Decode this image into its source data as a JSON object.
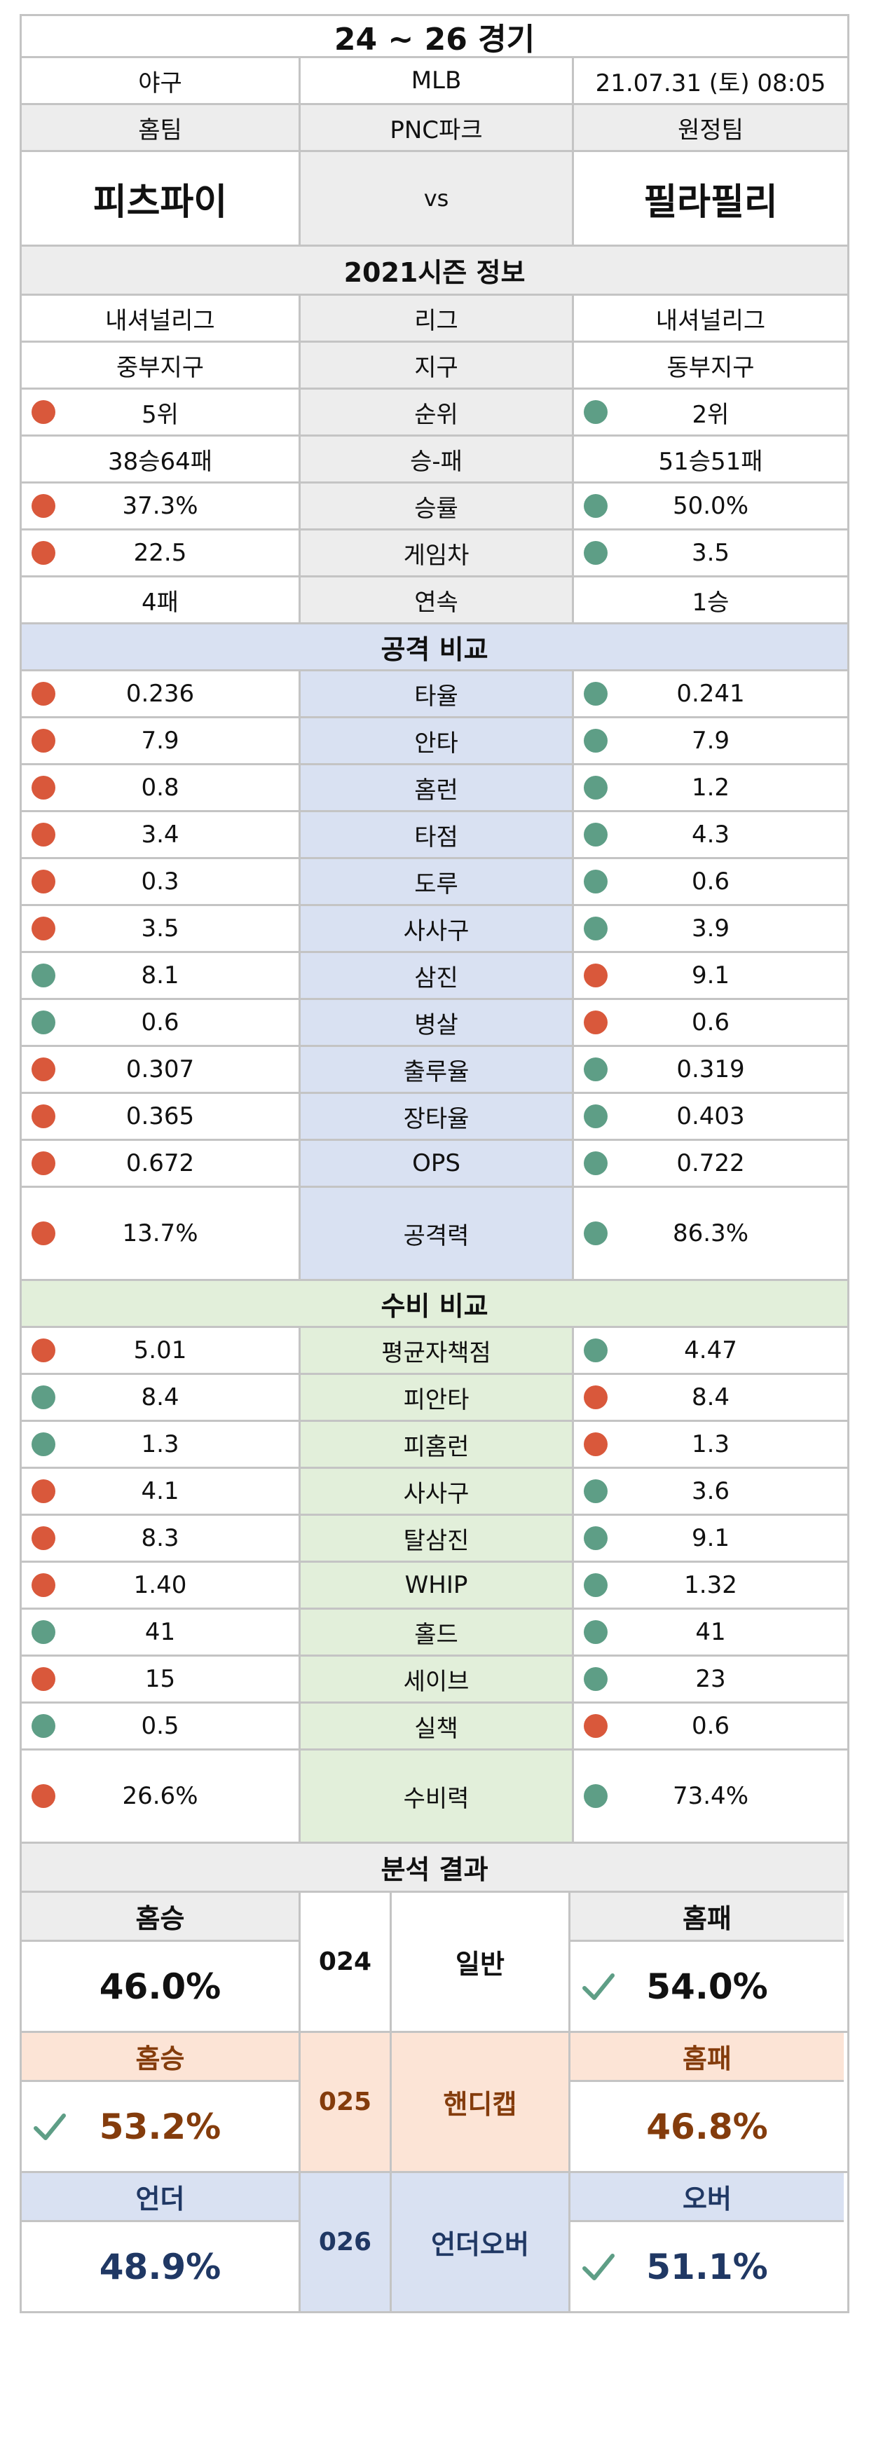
{
  "title": "24 ~ 26 경기",
  "info": {
    "sport": "야구",
    "league": "MLB",
    "datetime": "21.07.31 (토) 08:05"
  },
  "header_labels": {
    "home": "홈팀",
    "venue": "PNC파크",
    "away": "원정팀"
  },
  "teams": {
    "home": "피츠파이",
    "vs": "vs",
    "away": "필라필리"
  },
  "season_title": "2021시즌 정보",
  "season_rows": [
    {
      "home": "내셔널리그",
      "label": "리그",
      "away": "내셔널리그",
      "hdot": "",
      "adot": ""
    },
    {
      "home": "중부지구",
      "label": "지구",
      "away": "동부지구",
      "hdot": "",
      "adot": ""
    },
    {
      "home": "5위",
      "label": "순위",
      "away": "2위",
      "hdot": "red",
      "adot": "green"
    },
    {
      "home": "38승64패",
      "label": "승-패",
      "away": "51승51패",
      "hdot": "",
      "adot": ""
    },
    {
      "home": "37.3%",
      "label": "승률",
      "away": "50.0%",
      "hdot": "red",
      "adot": "green"
    },
    {
      "home": "22.5",
      "label": "게임차",
      "away": "3.5",
      "hdot": "red",
      "adot": "green"
    },
    {
      "home": "4패",
      "label": "연속",
      "away": "1승",
      "hdot": "",
      "adot": ""
    }
  ],
  "offense_title": "공격 비교",
  "offense_rows": [
    {
      "home": "0.236",
      "label": "타율",
      "away": "0.241",
      "hdot": "red",
      "adot": "green"
    },
    {
      "home": "7.9",
      "label": "안타",
      "away": "7.9",
      "hdot": "red",
      "adot": "green"
    },
    {
      "home": "0.8",
      "label": "홈런",
      "away": "1.2",
      "hdot": "red",
      "adot": "green"
    },
    {
      "home": "3.4",
      "label": "타점",
      "away": "4.3",
      "hdot": "red",
      "adot": "green"
    },
    {
      "home": "0.3",
      "label": "도루",
      "away": "0.6",
      "hdot": "red",
      "adot": "green"
    },
    {
      "home": "3.5",
      "label": "사사구",
      "away": "3.9",
      "hdot": "red",
      "adot": "green"
    },
    {
      "home": "8.1",
      "label": "삼진",
      "away": "9.1",
      "hdot": "green",
      "adot": "red"
    },
    {
      "home": "0.6",
      "label": "병살",
      "away": "0.6",
      "hdot": "green",
      "adot": "red"
    },
    {
      "home": "0.307",
      "label": "출루율",
      "away": "0.319",
      "hdot": "red",
      "adot": "green"
    },
    {
      "home": "0.365",
      "label": "장타율",
      "away": "0.403",
      "hdot": "red",
      "adot": "green"
    },
    {
      "home": "0.672",
      "label": "OPS",
      "away": "0.722",
      "hdot": "red",
      "adot": "green"
    },
    {
      "home": "13.7%",
      "label": "공격력",
      "away": "86.3%",
      "hdot": "red",
      "adot": "green",
      "tall": true
    }
  ],
  "defense_title": "수비 비교",
  "defense_rows": [
    {
      "home": "5.01",
      "label": "평균자책점",
      "away": "4.47",
      "hdot": "red",
      "adot": "green"
    },
    {
      "home": "8.4",
      "label": "피안타",
      "away": "8.4",
      "hdot": "green",
      "adot": "red"
    },
    {
      "home": "1.3",
      "label": "피홈런",
      "away": "1.3",
      "hdot": "green",
      "adot": "red"
    },
    {
      "home": "4.1",
      "label": "사사구",
      "away": "3.6",
      "hdot": "red",
      "adot": "green"
    },
    {
      "home": "8.3",
      "label": "탈삼진",
      "away": "9.1",
      "hdot": "red",
      "adot": "green"
    },
    {
      "home": "1.40",
      "label": "WHIP",
      "away": "1.32",
      "hdot": "red",
      "adot": "green"
    },
    {
      "home": "41",
      "label": "홀드",
      "away": "41",
      "hdot": "green",
      "adot": "green"
    },
    {
      "home": "15",
      "label": "세이브",
      "away": "23",
      "hdot": "red",
      "adot": "green"
    },
    {
      "home": "0.5",
      "label": "실책",
      "away": "0.6",
      "hdot": "green",
      "adot": "red"
    },
    {
      "home": "26.6%",
      "label": "수비력",
      "away": "73.4%",
      "hdot": "red",
      "adot": "green",
      "tall": true
    }
  ],
  "analysis_title": "분석 결과",
  "results": [
    {
      "code": "024",
      "type": "일반",
      "left_label": "홈승",
      "left_value": "46.0%",
      "right_label": "홈패",
      "right_value": "54.0%",
      "pick": "right",
      "head_bg": "#ededed",
      "mid_bg": "#ffffff",
      "text_color": "#111111",
      "label_color": "#111111"
    },
    {
      "code": "025",
      "type": "핸디캡",
      "left_label": "홈승",
      "left_value": "53.2%",
      "right_label": "홈패",
      "right_value": "46.8%",
      "pick": "left",
      "head_bg": "#fce4d6",
      "mid_bg": "#fce4d6",
      "text_color": "#843c0c",
      "label_color": "#843c0c"
    },
    {
      "code": "026",
      "type": "언더오버",
      "left_label": "언더",
      "left_value": "48.9%",
      "right_label": "오버",
      "right_value": "51.1%",
      "pick": "right",
      "head_bg": "#d9e1f2",
      "mid_bg": "#d9e1f2",
      "text_color": "#203864",
      "label_color": "#203864"
    }
  ],
  "colors": {
    "red_dot": "#d9583b",
    "green_dot": "#5e9e86",
    "check": "#5e9e86"
  }
}
